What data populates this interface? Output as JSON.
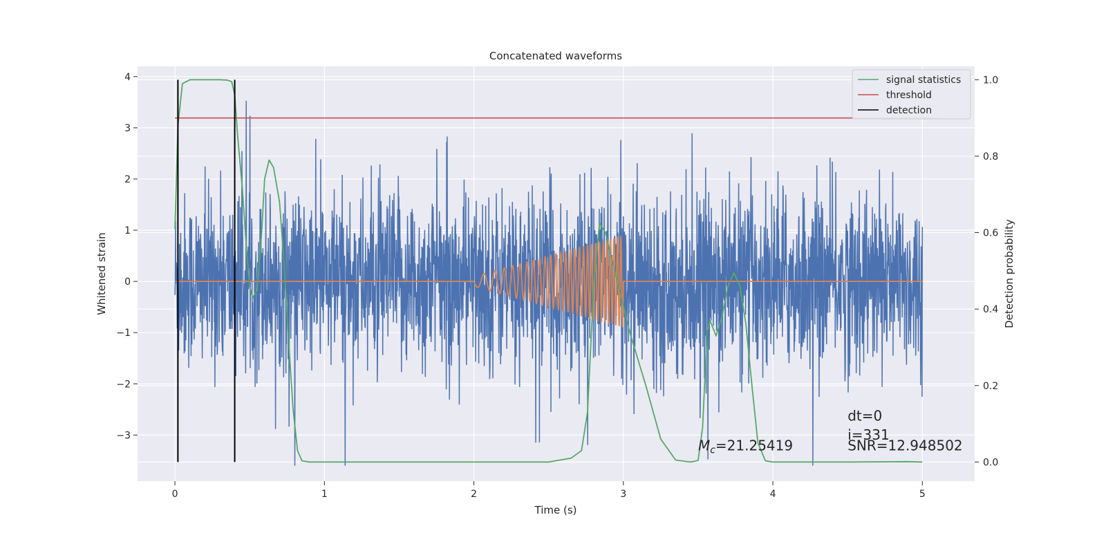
{
  "chart_data": {
    "type": "line",
    "title": "Concatenated waveforms",
    "xlabel": "Time (s)",
    "ylabel": "Whitened strain",
    "ylabel_right": "Detection probability",
    "xlim": [
      -0.25,
      5.35
    ],
    "ylim": [
      -3.9,
      4.2
    ],
    "ylim_right": [
      -0.05,
      1.035
    ],
    "x_ticks": [
      0,
      1,
      2,
      3,
      4,
      5
    ],
    "y_ticks": [
      -3,
      -2,
      -1,
      0,
      1,
      2,
      3,
      4
    ],
    "y_ticks_right": [
      0.0,
      0.2,
      0.4,
      0.6,
      0.8,
      1.0
    ],
    "x_tick_labels": [
      "0",
      "1",
      "2",
      "3",
      "4",
      "5"
    ],
    "y_tick_labels": [
      "−3",
      "−2",
      "−1",
      "0",
      "1",
      "2",
      "3",
      "4"
    ],
    "y_tick_labels_right": [
      "0.0",
      "0.2",
      "0.4",
      "0.6",
      "0.8",
      "1.0"
    ],
    "grid": true,
    "legend_position": "top-right",
    "colors": {
      "noise": "#4c72b0",
      "template": "#dd8452",
      "signal": "#55a868",
      "threshold": "#c44e52",
      "detection": "#000000",
      "background": "#eaeaf2"
    },
    "legend": [
      {
        "label": "signal statistics",
        "color": "#55a868"
      },
      {
        "label": "threshold",
        "color": "#c44e52"
      },
      {
        "label": "detection",
        "color": "#000000"
      }
    ],
    "noise_series": {
      "x_range": [
        0,
        5
      ],
      "typical_amplitude": 0.85,
      "max": 3.8,
      "min": -3.6
    },
    "template_series": {
      "x": [
        2.0,
        3.0
      ],
      "frequency_start_hz": 10,
      "frequency_end_hz": 45,
      "amplitude_start": 0.1,
      "amplitude_end": 0.9,
      "zero_outside": [
        0,
        5
      ]
    },
    "signal_statistics": {
      "axis": "right",
      "x": [
        0.0,
        0.02,
        0.05,
        0.1,
        0.2,
        0.3,
        0.35,
        0.38,
        0.4,
        0.42,
        0.45,
        0.48,
        0.5,
        0.52,
        0.55,
        0.58,
        0.6,
        0.63,
        0.66,
        0.7,
        0.73,
        0.76,
        0.79,
        0.82,
        0.85,
        0.9,
        1.0,
        1.5,
        2.0,
        2.5,
        2.65,
        2.72,
        2.76,
        2.8,
        2.84,
        2.88,
        2.93,
        2.98,
        3.05,
        3.15,
        3.25,
        3.35,
        3.45,
        3.5,
        3.53,
        3.56,
        3.58,
        3.62,
        3.66,
        3.7,
        3.74,
        3.78,
        3.82,
        3.86,
        3.9,
        3.95,
        4.0,
        4.5,
        4.9,
        5.0
      ],
      "values": [
        0.61,
        0.88,
        0.99,
        1.0,
        1.0,
        1.0,
        0.999,
        0.995,
        0.96,
        0.85,
        0.72,
        0.55,
        0.46,
        0.43,
        0.45,
        0.6,
        0.74,
        0.79,
        0.77,
        0.68,
        0.52,
        0.32,
        0.14,
        0.03,
        0.003,
        0.0,
        0.0,
        0.0,
        0.0,
        0.0,
        0.01,
        0.03,
        0.13,
        0.45,
        0.625,
        0.6,
        0.52,
        0.44,
        0.33,
        0.2,
        0.06,
        0.005,
        0.0,
        0.004,
        0.09,
        0.34,
        0.37,
        0.33,
        0.38,
        0.46,
        0.495,
        0.46,
        0.36,
        0.2,
        0.05,
        0.003,
        0.0,
        0.0,
        0.001,
        0.0
      ]
    },
    "threshold": {
      "axis": "right",
      "value": 0.9,
      "x_range": [
        0,
        5.1
      ]
    },
    "detections": [
      0.02,
      0.4
    ],
    "annotations": [
      {
        "text": "dt=0",
        "x": 4.5,
        "y": -2.72
      },
      {
        "text": "i=331",
        "x": 4.5,
        "y": -3.09
      },
      {
        "text": "SNR=12.948502",
        "x": 4.5,
        "y": -3.3
      },
      {
        "text": "=21.25419",
        "symbol": "M",
        "subscript": "c",
        "x": 3.5,
        "y": -3.3
      }
    ]
  }
}
